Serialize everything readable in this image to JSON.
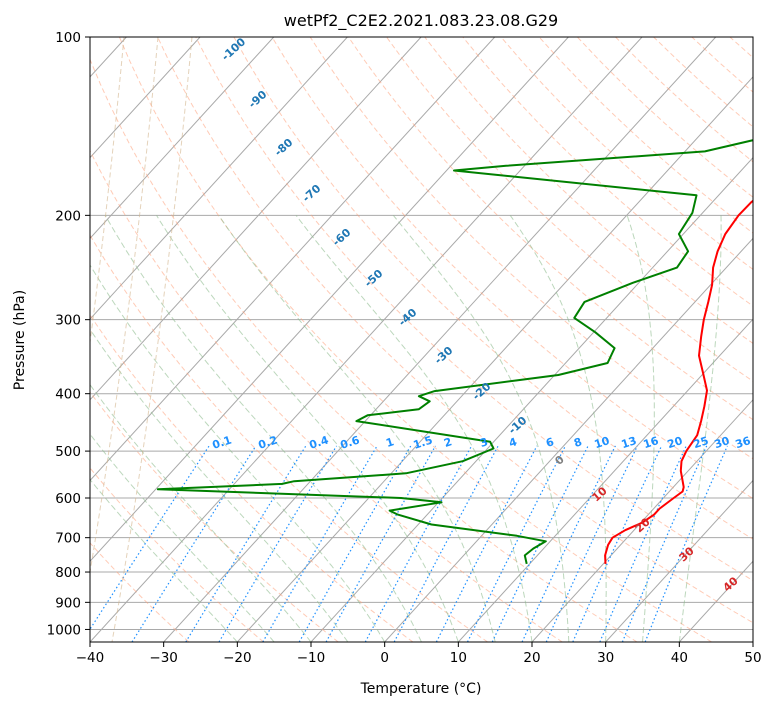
{
  "chart_data": {
    "type": "line",
    "title": "wetPf2_C2E2.2021.083.23.08.G29",
    "xlabel": "Temperature (°C)",
    "ylabel": "Pressure (hPa)",
    "xlim": [
      -40,
      50
    ],
    "ylim": [
      1050,
      100
    ],
    "y_scale": "log",
    "x_ticks": [
      -40,
      -30,
      -20,
      -10,
      0,
      10,
      20,
      30,
      40,
      50
    ],
    "y_ticks": [
      100,
      200,
      300,
      400,
      500,
      600,
      700,
      800,
      900,
      1000
    ],
    "grid": true,
    "skew": true,
    "series": [
      {
        "role": "temperature",
        "color": "#ff0000",
        "points": [
          [
            20.3,
            775
          ],
          [
            19.2,
            750
          ],
          [
            18.3,
            720
          ],
          [
            18.0,
            700
          ],
          [
            18.8,
            680
          ],
          [
            20.2,
            660
          ],
          [
            20.8,
            640
          ],
          [
            20.8,
            625
          ],
          [
            21.4,
            600
          ],
          [
            21.8,
            585
          ],
          [
            21.4,
            575
          ],
          [
            20.4,
            560
          ],
          [
            19.0,
            540
          ],
          [
            17.9,
            520
          ],
          [
            17.3,
            500
          ],
          [
            16.8,
            470
          ],
          [
            15.6,
            445
          ],
          [
            14.2,
            420
          ],
          [
            12.6,
            395
          ],
          [
            10.0,
            370
          ],
          [
            7.2,
            345
          ],
          [
            5.1,
            320
          ],
          [
            3.4,
            300
          ],
          [
            1.8,
            280
          ],
          [
            0.2,
            262
          ],
          [
            -1.8,
            245
          ],
          [
            -3.2,
            230
          ],
          [
            -4.3,
            215
          ],
          [
            -4.8,
            200
          ],
          [
            -4.7,
            190
          ],
          [
            -3.9,
            180
          ],
          [
            -2.2,
            172
          ],
          [
            -0.1,
            164
          ],
          [
            1.2,
            156
          ],
          [
            2.2,
            148
          ],
          [
            2.6,
            141
          ],
          [
            2.9,
            134
          ],
          [
            3.3,
            127
          ],
          [
            4.3,
            121
          ],
          [
            6.4,
            115
          ],
          [
            8.4,
            110
          ],
          [
            10.0,
            105
          ],
          [
            11.4,
            100
          ]
        ]
      },
      {
        "role": "dewpoint",
        "color": "#008000",
        "points": [
          [
            9.6,
            775
          ],
          [
            8.3,
            750
          ],
          [
            8.6,
            730
          ],
          [
            9.4,
            710
          ],
          [
            4.8,
            695
          ],
          [
            -8.2,
            665
          ],
          [
            -14.0,
            640
          ],
          [
            -15.6,
            630
          ],
          [
            -9.6,
            610
          ],
          [
            -15.6,
            600
          ],
          [
            -49.7,
            580
          ],
          [
            -33.5,
            568
          ],
          [
            -32.2,
            562
          ],
          [
            -18.0,
            545
          ],
          [
            -11.8,
            520
          ],
          [
            -9.2,
            495
          ],
          [
            -10.5,
            482
          ],
          [
            -31.2,
            445
          ],
          [
            -30.4,
            435
          ],
          [
            -24.2,
            425
          ],
          [
            -23.7,
            412
          ],
          [
            -25.8,
            404
          ],
          [
            -24.3,
            396
          ],
          [
            -9.5,
            372
          ],
          [
            -4.3,
            355
          ],
          [
            -5.2,
            335
          ],
          [
            -9.8,
            315
          ],
          [
            -14.4,
            298
          ],
          [
            -15.0,
            280
          ],
          [
            -10.8,
            260
          ],
          [
            -6.7,
            245
          ],
          [
            -7.2,
            230
          ],
          [
            -10.6,
            215
          ],
          [
            -11.4,
            198
          ],
          [
            -13.0,
            185
          ],
          [
            -49.0,
            168
          ],
          [
            -42.5,
            165
          ],
          [
            -17.3,
            156
          ],
          [
            -9.5,
            146
          ],
          [
            -10.3,
            136
          ],
          [
            -16.7,
            125
          ],
          [
            -16.2,
            116
          ],
          [
            -10.5,
            108
          ],
          [
            -3.8,
            100
          ]
        ]
      }
    ],
    "background_lines": {
      "isotherm_color": "#a9a9a9",
      "dry_adiabat_color": "#ffa07a",
      "moist_adiabat_color": "#8fbc8f",
      "mixing_ratio_color": "#1e90ff",
      "lcl_color": "#d2b48c"
    },
    "moist_adiabat_labels": [
      "-100",
      "-90",
      "-80",
      "-70",
      "-60",
      "-50",
      "-40",
      "-30",
      "-20",
      "-10",
      "0",
      "10",
      "20",
      "30",
      "40"
    ],
    "mixing_ratio_labels": [
      "0.1",
      "0.2",
      "0.4",
      "0.6",
      "1",
      "1.5",
      "2",
      "3",
      "4",
      "6",
      "8",
      "10",
      "13",
      "16",
      "20",
      "25",
      "30",
      "36"
    ]
  }
}
